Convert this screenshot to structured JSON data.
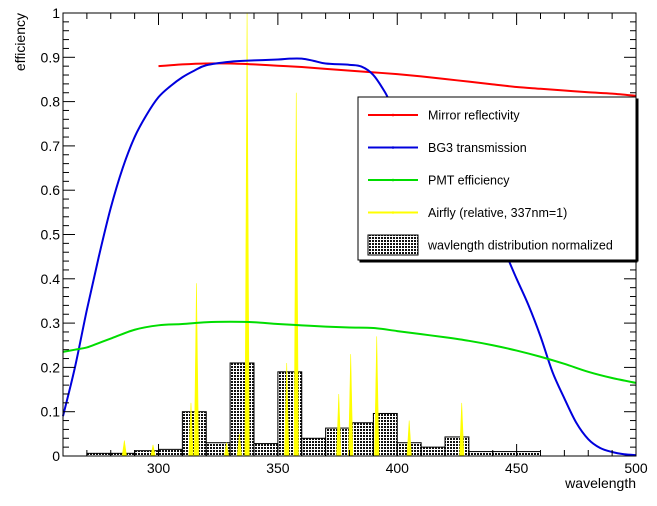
{
  "chart_data": {
    "type": "line",
    "xlabel": "wavelength",
    "ylabel": "efficiency",
    "xlim": [
      260,
      500
    ],
    "ylim": [
      0,
      1
    ],
    "xticks": [
      300,
      350,
      400,
      450,
      500
    ],
    "yticks": [
      0,
      0.1,
      0.2,
      0.3,
      0.4,
      0.5,
      0.6,
      0.7,
      0.8,
      0.9,
      1
    ],
    "grid": false,
    "legend_position": "upper-right",
    "series": [
      {
        "name": "Mirror reflectivity",
        "kind": "line",
        "color": "#ff0000",
        "x": [
          300,
          305,
          310,
          320,
          330,
          340,
          350,
          360,
          370,
          380,
          390,
          400,
          410,
          420,
          430,
          440,
          450,
          460,
          470,
          480,
          490,
          500
        ],
        "y": [
          0.88,
          0.882,
          0.884,
          0.886,
          0.886,
          0.884,
          0.881,
          0.878,
          0.874,
          0.87,
          0.866,
          0.862,
          0.857,
          0.851,
          0.845,
          0.839,
          0.833,
          0.829,
          0.825,
          0.821,
          0.818,
          0.813
        ]
      },
      {
        "name": "BG3 transmission",
        "kind": "line",
        "color": "#0000dd",
        "x": [
          260,
          265,
          270,
          275,
          280,
          285,
          290,
          295,
          300,
          305,
          310,
          315,
          320,
          330,
          340,
          350,
          355,
          360,
          365,
          370,
          380,
          385,
          390,
          395,
          400,
          410,
          420,
          430,
          440,
          450,
          455,
          460,
          465,
          470,
          475,
          480,
          485,
          490,
          495,
          500
        ],
        "y": [
          0.09,
          0.2,
          0.33,
          0.45,
          0.56,
          0.65,
          0.72,
          0.77,
          0.81,
          0.835,
          0.855,
          0.87,
          0.882,
          0.89,
          0.893,
          0.895,
          0.897,
          0.897,
          0.892,
          0.886,
          0.883,
          0.879,
          0.86,
          0.82,
          0.77,
          0.72,
          0.665,
          0.6,
          0.52,
          0.4,
          0.34,
          0.27,
          0.19,
          0.13,
          0.075,
          0.038,
          0.018,
          0.009,
          0.004,
          0.002
        ]
      },
      {
        "name": "PMT efficiency",
        "kind": "line",
        "color": "#00dd00",
        "x": [
          260,
          265,
          270,
          275,
          280,
          290,
          300,
          310,
          320,
          330,
          340,
          350,
          360,
          370,
          380,
          390,
          400,
          410,
          420,
          430,
          440,
          450,
          460,
          470,
          480,
          490,
          500
        ],
        "y": [
          0.235,
          0.24,
          0.245,
          0.255,
          0.265,
          0.285,
          0.295,
          0.298,
          0.302,
          0.303,
          0.302,
          0.298,
          0.295,
          0.292,
          0.29,
          0.289,
          0.282,
          0.275,
          0.268,
          0.26,
          0.25,
          0.238,
          0.224,
          0.208,
          0.19,
          0.176,
          0.165
        ]
      },
      {
        "name": "Airfly (relative, 337nm=1)",
        "kind": "spikes",
        "color": "#ffff00",
        "x": [
          285.7,
          297.7,
          313.6,
          315.9,
          328.5,
          333.9,
          337.1,
          353.7,
          357.7,
          375.5,
          380.5,
          391.4,
          405.0,
          427.0
        ],
        "y": [
          0.035,
          0.025,
          0.12,
          0.39,
          0.03,
          0.05,
          1.0,
          0.21,
          0.82,
          0.14,
          0.23,
          0.27,
          0.08,
          0.12
        ]
      }
    ],
    "histogram": {
      "name": "wavlength distribution normalized",
      "color": "#000000",
      "bin_edges": [
        270,
        280,
        290,
        300,
        310,
        320,
        330,
        340,
        350,
        360,
        370,
        380,
        390,
        400,
        410,
        420,
        430,
        440,
        450,
        460
      ],
      "values": [
        0.006,
        0.006,
        0.012,
        0.015,
        0.1,
        0.03,
        0.21,
        0.028,
        0.19,
        0.04,
        0.063,
        0.075,
        0.096,
        0.03,
        0.02,
        0.043,
        0.01,
        0.01,
        0.01
      ]
    }
  }
}
